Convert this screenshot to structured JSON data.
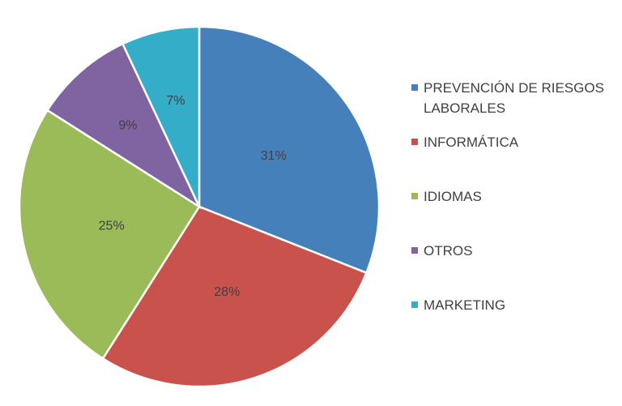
{
  "chart_data": {
    "type": "pie",
    "categories": [
      "PREVENCIÓN DE RIESGOS LABORALES",
      "INFORMÁTICA",
      "IDIOMAS",
      "OTROS",
      "MARKETING"
    ],
    "values": [
      31,
      28,
      25,
      9,
      7
    ],
    "value_labels": [
      "31%",
      "28%",
      "25%",
      "9%",
      "7%"
    ],
    "colors": [
      "#4680bb",
      "#c9524d",
      "#9bbb59",
      "#8064a2",
      "#34aec8"
    ],
    "legend": "right"
  }
}
